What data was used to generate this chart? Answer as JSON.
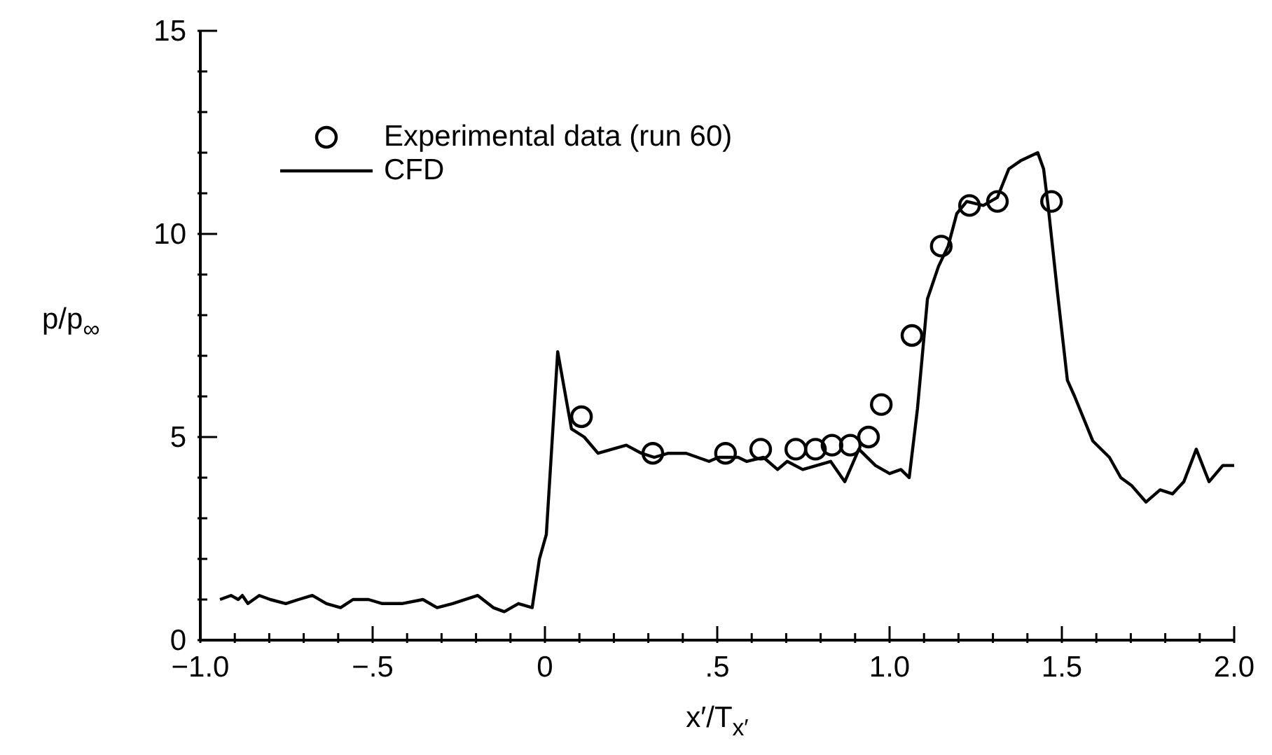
{
  "chart_data": {
    "type": "line",
    "xlabel": "x′/T$_{x′}$",
    "ylabel": "p/p$_{∞}$",
    "xlim": [
      -1.0,
      2.0
    ],
    "xticks": [
      {
        "value": -1.0,
        "label": "−1.0"
      },
      {
        "value": -0.9,
        "label": null
      },
      {
        "value": -0.8,
        "label": null
      },
      {
        "value": -0.7,
        "label": null
      },
      {
        "value": -0.6,
        "label": null
      },
      {
        "value": -0.5,
        "label": "−.5"
      },
      {
        "value": -0.4,
        "label": null
      },
      {
        "value": -0.3,
        "label": null
      },
      {
        "value": -0.2,
        "label": null
      },
      {
        "value": -0.1,
        "label": null
      },
      {
        "value": 0,
        "label": "0"
      },
      {
        "value": 0.1,
        "label": null
      },
      {
        "value": 0.2,
        "label": null
      },
      {
        "value": 0.3,
        "label": null
      },
      {
        "value": 0.4,
        "label": null
      },
      {
        "value": 0.5,
        "label": ".5"
      },
      {
        "value": 0.6,
        "label": null
      },
      {
        "value": 0.7,
        "label": null
      },
      {
        "value": 0.8,
        "label": null
      },
      {
        "value": 0.9,
        "label": null
      },
      {
        "value": 1.0,
        "label": "1.0"
      },
      {
        "value": 1.1,
        "label": null
      },
      {
        "value": 1.2,
        "label": null
      },
      {
        "value": 1.3,
        "label": null
      },
      {
        "value": 1.4,
        "label": null
      },
      {
        "value": 1.5,
        "label": "1.5"
      },
      {
        "value": 1.6,
        "label": null
      },
      {
        "value": 1.7,
        "label": null
      },
      {
        "value": 1.8,
        "label": null
      },
      {
        "value": 1.9,
        "label": null
      },
      {
        "value": 2.0,
        "label": "2.0"
      }
    ],
    "ylim": [
      0,
      15
    ],
    "yticks": [
      0,
      {
        "value": 1,
        "label": null
      },
      {
        "value": 2,
        "label": null
      },
      {
        "value": 3,
        "label": null
      },
      {
        "value": 4,
        "label": null
      },
      5,
      {
        "value": 6,
        "label": null
      },
      {
        "value": 7,
        "label": null
      },
      {
        "value": 8,
        "label": null
      },
      {
        "value": 9,
        "label": null
      },
      10,
      {
        "value": 11,
        "label": null
      },
      {
        "value": 12,
        "label": null
      },
      {
        "value": 13,
        "label": null
      },
      {
        "value": 14,
        "label": null
      },
      15
    ],
    "grid": false,
    "legend": "top left",
    "series": [
      {
        "name": "Experimental data (run 60)",
        "type": "scatter",
        "marker": "circle",
        "color": "#000000",
        "x": [
          0.106,
          0.313,
          0.524,
          0.626,
          0.728,
          0.785,
          0.833,
          0.886,
          0.939,
          0.976,
          1.065,
          1.15,
          1.232,
          1.313,
          1.47
        ],
        "values": [
          5.5,
          4.6,
          4.6,
          4.7,
          4.7,
          4.7,
          4.8,
          4.8,
          5.0,
          5.8,
          7.5,
          9.7,
          10.7,
          10.8,
          10.8
        ]
      },
      {
        "name": "CFD",
        "type": "line",
        "marker": "none",
        "line_style": "solid",
        "color": "#000000",
        "x": [
          -0.943,
          -0.911,
          -0.89,
          -0.878,
          -0.862,
          -0.829,
          -0.797,
          -0.752,
          -0.715,
          -0.675,
          -0.634,
          -0.593,
          -0.557,
          -0.512,
          -0.472,
          -0.415,
          -0.354,
          -0.313,
          -0.268,
          -0.195,
          -0.15,
          -0.118,
          -0.077,
          -0.037,
          -0.016,
          0.004,
          0.037,
          0.077,
          0.114,
          0.154,
          0.195,
          0.236,
          0.28,
          0.317,
          0.358,
          0.41,
          0.443,
          0.476,
          0.504,
          0.561,
          0.585,
          0.634,
          0.675,
          0.703,
          0.748,
          0.829,
          0.87,
          0.911,
          0.959,
          1.0,
          1.033,
          1.057,
          1.081,
          1.11,
          1.142,
          1.17,
          1.195,
          1.224,
          1.272,
          1.313,
          1.346,
          1.38,
          1.43,
          1.447,
          1.46,
          1.488,
          1.516,
          1.537,
          1.59,
          1.638,
          1.671,
          1.703,
          1.744,
          1.785,
          1.821,
          1.854,
          1.89,
          1.927,
          1.967,
          2.0
        ],
        "values": [
          1.0,
          1.1,
          1.0,
          1.1,
          0.9,
          1.1,
          1.0,
          0.9,
          1.0,
          1.1,
          0.9,
          0.8,
          1.0,
          1.0,
          0.9,
          0.9,
          1.0,
          0.8,
          0.9,
          1.1,
          0.8,
          0.7,
          0.9,
          0.8,
          2.0,
          2.6,
          7.1,
          5.2,
          5.0,
          4.6,
          4.7,
          4.8,
          4.6,
          4.5,
          4.6,
          4.6,
          4.5,
          4.4,
          4.5,
          4.5,
          4.4,
          4.5,
          4.2,
          4.4,
          4.2,
          4.4,
          3.9,
          4.7,
          4.3,
          4.1,
          4.2,
          4.0,
          5.7,
          8.4,
          9.2,
          9.7,
          10.5,
          10.8,
          10.7,
          10.9,
          11.6,
          11.8,
          12.0,
          11.6,
          10.7,
          8.5,
          6.4,
          6.0,
          4.9,
          4.5,
          4.0,
          3.8,
          3.4,
          3.7,
          3.6,
          3.9,
          4.7,
          3.9,
          4.3,
          4.3
        ]
      }
    ]
  }
}
